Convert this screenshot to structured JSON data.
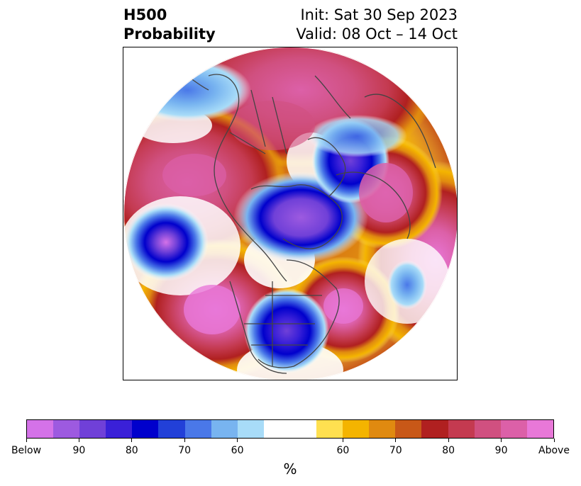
{
  "header": {
    "title_line1": "H500",
    "title_line2": "Probability",
    "init_text": "Init: Sat 30 Sep 2023",
    "valid_text": "Valid: 08 Oct – 14 Oct"
  },
  "colorbar": {
    "unit_label": "%",
    "colors": [
      "#d472e8",
      "#9d5ae0",
      "#7040d8",
      "#3a20d8",
      "#0000cc",
      "#2240d8",
      "#4a78e8",
      "#78b4f0",
      "#a8dcf8",
      "#ffffff",
      "#ffffff",
      "#ffe050",
      "#f4b400",
      "#e08a10",
      "#c85818",
      "#b02020",
      "#c43a50",
      "#d05080",
      "#dc60a8",
      "#e878d8"
    ],
    "tick_labels": [
      {
        "text": "Below",
        "idx": 0
      },
      {
        "text": "90",
        "idx": 2
      },
      {
        "text": "80",
        "idx": 4
      },
      {
        "text": "70",
        "idx": 6
      },
      {
        "text": "60",
        "idx": 8
      },
      {
        "text": "60",
        "idx": 12
      },
      {
        "text": "70",
        "idx": 14
      },
      {
        "text": "80",
        "idx": 16
      },
      {
        "text": "90",
        "idx": 18
      },
      {
        "text": "Above",
        "idx": 20
      }
    ]
  }
}
